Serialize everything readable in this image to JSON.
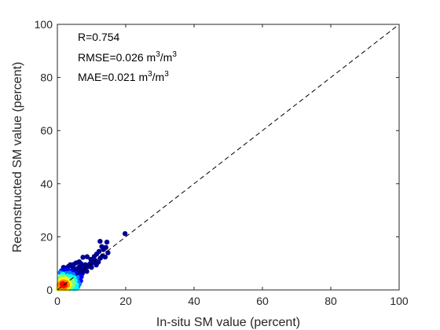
{
  "chart_data": {
    "type": "scatter",
    "title": "",
    "xlabel": "In-situ SM value (percent)",
    "ylabel": "Reconstructed SM value (percent)",
    "xlim": [
      0,
      100
    ],
    "ylim": [
      0,
      100
    ],
    "xticks": [
      "0",
      "20",
      "40",
      "60",
      "80",
      "100"
    ],
    "yticks": [
      "0",
      "20",
      "40",
      "60",
      "80",
      "100"
    ],
    "grid": false,
    "reference_line": {
      "style": "dashed",
      "from": [
        0,
        0
      ],
      "to": [
        100,
        100
      ],
      "color": "#000000"
    },
    "annotations": {
      "r": "R=0.754",
      "rmse_prefix": "RMSE=0.026 m",
      "rmse_sup1": "3",
      "rmse_mid": "/m",
      "rmse_sup2": "3",
      "mae_prefix": "MAE=0.021 m",
      "mae_sup1": "3",
      "mae_mid": "/m",
      "mae_sup2": "3"
    },
    "colormap": [
      "#00008f",
      "#0000ff",
      "#0080ff",
      "#00ffff",
      "#80ff80",
      "#ffff00",
      "#ff8000",
      "#ff0000",
      "#800000"
    ],
    "density_peak": [
      1.8,
      2.0
    ],
    "points": [
      [
        19.8,
        21.2
      ],
      [
        14.5,
        18.0
      ],
      [
        12.5,
        18.3
      ],
      [
        13.0,
        16.3
      ],
      [
        14.2,
        16.0
      ],
      [
        13.5,
        15.2
      ],
      [
        12.2,
        14.5
      ],
      [
        14.8,
        14.0
      ],
      [
        11.5,
        13.5
      ],
      [
        13.2,
        12.8
      ],
      [
        10.8,
        12.6
      ],
      [
        12.6,
        12.0
      ],
      [
        14.0,
        12.4
      ],
      [
        8.7,
        12.5
      ],
      [
        7.5,
        12.3
      ],
      [
        9.8,
        11.5
      ],
      [
        11.0,
        11.0
      ],
      [
        12.0,
        10.5
      ],
      [
        10.2,
        10.2
      ],
      [
        9.5,
        9.8
      ],
      [
        8.2,
        9.5
      ],
      [
        11.4,
        9.4
      ],
      [
        7.0,
        9.8
      ],
      [
        6.4,
        10.6
      ],
      [
        5.5,
        10.2
      ],
      [
        4.8,
        9.6
      ],
      [
        3.8,
        9.5
      ],
      [
        9.0,
        8.8
      ],
      [
        8.0,
        8.5
      ],
      [
        10.0,
        8.5
      ],
      [
        7.2,
        8.2
      ],
      [
        6.5,
        8.8
      ],
      [
        5.8,
        8.0
      ],
      [
        4.5,
        8.6
      ],
      [
        3.2,
        8.8
      ],
      [
        2.5,
        8.2
      ],
      [
        1.8,
        8.5
      ],
      [
        7.6,
        7.5
      ],
      [
        6.8,
        7.2
      ],
      [
        8.6,
        7.0
      ],
      [
        6.0,
        6.8
      ],
      [
        5.2,
        7.4
      ],
      [
        4.2,
        7.2
      ],
      [
        3.0,
        7.6
      ],
      [
        2.2,
        7.4
      ],
      [
        1.2,
        7.2
      ],
      [
        0.8,
        6.5
      ],
      [
        7.3,
        6.2
      ],
      [
        6.2,
        5.5
      ],
      [
        5.4,
        6.2
      ],
      [
        4.6,
        5.8
      ],
      [
        3.6,
        6.4
      ],
      [
        2.6,
        6.2
      ],
      [
        1.6,
        6.0
      ],
      [
        7.0,
        5.0
      ],
      [
        6.6,
        4.2
      ],
      [
        5.8,
        4.8
      ],
      [
        4.9,
        4.6
      ],
      [
        4.0,
        5.0
      ],
      [
        3.0,
        5.2
      ],
      [
        2.0,
        5.0
      ],
      [
        1.0,
        5.0
      ],
      [
        0.6,
        4.2
      ],
      [
        6.8,
        3.4
      ],
      [
        6.0,
        3.0
      ],
      [
        5.2,
        3.6
      ],
      [
        4.4,
        3.8
      ],
      [
        3.4,
        4.0
      ],
      [
        2.4,
        4.2
      ],
      [
        1.4,
        4.0
      ],
      [
        0.8,
        3.4
      ],
      [
        6.4,
        2.2
      ],
      [
        5.6,
        2.0
      ],
      [
        4.8,
        2.6
      ],
      [
        4.0,
        3.0
      ],
      [
        3.0,
        3.2
      ],
      [
        2.2,
        3.4
      ],
      [
        1.6,
        3.0
      ],
      [
        1.0,
        2.6
      ],
      [
        0.5,
        2.0
      ],
      [
        6.0,
        1.2
      ],
      [
        5.2,
        1.0
      ],
      [
        4.4,
        1.6
      ],
      [
        3.6,
        2.0
      ],
      [
        2.8,
        2.4
      ],
      [
        2.0,
        2.6
      ],
      [
        1.4,
        2.2
      ],
      [
        0.8,
        1.6
      ],
      [
        0.4,
        1.0
      ],
      [
        5.6,
        0.6
      ],
      [
        4.8,
        0.5
      ],
      [
        4.0,
        0.8
      ],
      [
        3.2,
        1.2
      ],
      [
        2.6,
        1.6
      ],
      [
        1.8,
        1.8
      ],
      [
        1.2,
        1.4
      ],
      [
        0.6,
        0.8
      ],
      [
        0.3,
        0.4
      ],
      [
        3.6,
        0.4
      ],
      [
        2.8,
        0.6
      ],
      [
        2.2,
        1.0
      ],
      [
        1.6,
        1.2
      ],
      [
        1.0,
        0.8
      ],
      [
        0.8,
        0.3
      ],
      [
        2.4,
        0.3
      ],
      [
        1.8,
        0.5
      ],
      [
        1.4,
        0.6
      ],
      [
        2.0,
        2.0
      ],
      [
        1.8,
        1.6
      ],
      [
        2.2,
        1.8
      ],
      [
        1.6,
        2.4
      ],
      [
        2.4,
        2.2
      ],
      [
        1.9,
        2.1
      ],
      [
        2.1,
        1.5
      ],
      [
        1.5,
        1.9
      ],
      [
        2.6,
        2.8
      ],
      [
        1.2,
        2.8
      ],
      [
        3.0,
        1.8
      ],
      [
        1.3,
        1.1
      ],
      [
        2.8,
        3.6
      ],
      [
        3.4,
        2.6
      ],
      [
        0.9,
        2.4
      ],
      [
        3.8,
        3.2
      ],
      [
        2.0,
        3.0
      ],
      [
        1.1,
        3.6
      ],
      [
        4.2,
        2.4
      ]
    ]
  }
}
